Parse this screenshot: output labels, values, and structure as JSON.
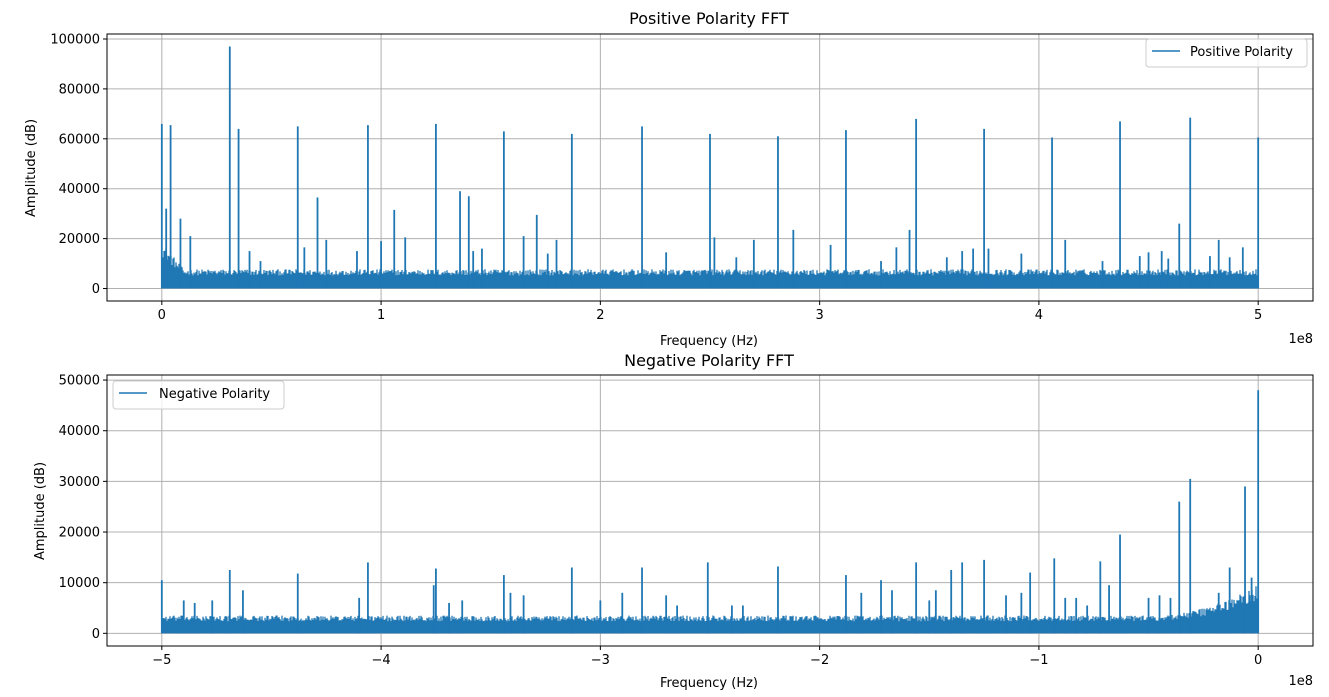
{
  "chart_data": [
    {
      "type": "line",
      "title": "Positive Polarity FFT",
      "xlabel": "Frequency (Hz)",
      "ylabel": "Amplitude (dB)",
      "x_offset_label": "1e8",
      "xlim": [
        -25000000,
        525000000
      ],
      "ylim": [
        -5000,
        102000
      ],
      "x_ticks": [
        0,
        100000000,
        200000000,
        300000000,
        400000000,
        500000000
      ],
      "x_tick_labels": [
        "0",
        "1",
        "2",
        "3",
        "4",
        "5"
      ],
      "y_ticks": [
        0,
        20000,
        40000,
        60000,
        80000,
        100000
      ],
      "y_tick_labels": [
        "0",
        "20000",
        "40000",
        "60000",
        "80000",
        "100000"
      ],
      "grid": true,
      "legend_position": "top-right",
      "color": "#1f77b4",
      "series": [
        {
          "name": "Positive Polarity",
          "x_range": [
            0,
            500000000
          ],
          "noise_floor": 4000,
          "noise_ceiling": 7000,
          "peaks": [
            [
              0,
              66000
            ],
            [
              2000000,
              32000
            ],
            [
              4000000,
              65500
            ],
            [
              8500000,
              28000
            ],
            [
              13000000,
              21000
            ],
            [
              31000000,
              97000
            ],
            [
              35000000,
              64000
            ],
            [
              40000000,
              15000
            ],
            [
              45000000,
              11000
            ],
            [
              62000000,
              65000
            ],
            [
              65000000,
              16500
            ],
            [
              71000000,
              36500
            ],
            [
              75000000,
              19500
            ],
            [
              89000000,
              15000
            ],
            [
              94000000,
              65500
            ],
            [
              100000000,
              19000
            ],
            [
              106000000,
              31500
            ],
            [
              111000000,
              20500
            ],
            [
              125000000,
              66000
            ],
            [
              136000000,
              39000
            ],
            [
              140000000,
              37000
            ],
            [
              142000000,
              15000
            ],
            [
              146000000,
              16000
            ],
            [
              156000000,
              63000
            ],
            [
              165000000,
              21000
            ],
            [
              171000000,
              29500
            ],
            [
              176000000,
              14000
            ],
            [
              180000000,
              19500
            ],
            [
              187000000,
              62000
            ],
            [
              219000000,
              65000
            ],
            [
              230000000,
              14500
            ],
            [
              250000000,
              62000
            ],
            [
              252000000,
              20500
            ],
            [
              262000000,
              12500
            ],
            [
              270000000,
              19500
            ],
            [
              281000000,
              61000
            ],
            [
              288000000,
              23500
            ],
            [
              305000000,
              17500
            ],
            [
              312000000,
              63500
            ],
            [
              328000000,
              11000
            ],
            [
              335000000,
              16500
            ],
            [
              341000000,
              23500
            ],
            [
              344000000,
              68000
            ],
            [
              358000000,
              12500
            ],
            [
              365000000,
              15000
            ],
            [
              370000000,
              16000
            ],
            [
              375000000,
              64000
            ],
            [
              377000000,
              16000
            ],
            [
              392000000,
              14000
            ],
            [
              406000000,
              60500
            ],
            [
              412000000,
              19500
            ],
            [
              429000000,
              11000
            ],
            [
              437000000,
              67000
            ],
            [
              446000000,
              13000
            ],
            [
              450000000,
              14500
            ],
            [
              456000000,
              15000
            ],
            [
              459000000,
              12000
            ],
            [
              464000000,
              26000
            ],
            [
              469000000,
              68500
            ],
            [
              478000000,
              13000
            ],
            [
              482000000,
              19500
            ],
            [
              487000000,
              12500
            ],
            [
              493000000,
              16500
            ],
            [
              500000000,
              60500
            ]
          ]
        }
      ]
    },
    {
      "type": "line",
      "title": "Negative Polarity FFT",
      "xlabel": "Frequency (Hz)",
      "ylabel": "Amplitude (dB)",
      "x_offset_label": "1e8",
      "xlim": [
        -525000000,
        25000000
      ],
      "ylim": [
        -2500,
        51000
      ],
      "x_ticks": [
        -500000000,
        -400000000,
        -300000000,
        -200000000,
        -100000000,
        0
      ],
      "x_tick_labels": [
        "−5",
        "−4",
        "−3",
        "−2",
        "−1",
        "0"
      ],
      "y_ticks": [
        0,
        10000,
        20000,
        30000,
        40000,
        50000
      ],
      "y_tick_labels": [
        "0",
        "10000",
        "20000",
        "30000",
        "40000",
        "50000"
      ],
      "grid": true,
      "legend_position": "top-left",
      "color": "#1f77b4",
      "series": [
        {
          "name": "Negative Polarity",
          "x_range": [
            -500000000,
            0
          ],
          "noise_floor": 2000,
          "noise_ceiling": 3200,
          "peaks": [
            [
              -500000000,
              10500
            ],
            [
              -490000000,
              6500
            ],
            [
              -485000000,
              6000
            ],
            [
              -477000000,
              6500
            ],
            [
              -469000000,
              12500
            ],
            [
              -463000000,
              8500
            ],
            [
              -438000000,
              11800
            ],
            [
              -410000000,
              7000
            ],
            [
              -406000000,
              14000
            ],
            [
              -376000000,
              9500
            ],
            [
              -375000000,
              12800
            ],
            [
              -369000000,
              6000
            ],
            [
              -363000000,
              6500
            ],
            [
              -344000000,
              11500
            ],
            [
              -341000000,
              8000
            ],
            [
              -335000000,
              7500
            ],
            [
              -313000000,
              13000
            ],
            [
              -300000000,
              6500
            ],
            [
              -290000000,
              8000
            ],
            [
              -281000000,
              13000
            ],
            [
              -270000000,
              7500
            ],
            [
              -265000000,
              5500
            ],
            [
              -251000000,
              14000
            ],
            [
              -240000000,
              5500
            ],
            [
              -235000000,
              5500
            ],
            [
              -219000000,
              13200
            ],
            [
              -188000000,
              11500
            ],
            [
              -181000000,
              8000
            ],
            [
              -172000000,
              10500
            ],
            [
              -167000000,
              8500
            ],
            [
              -156000000,
              14000
            ],
            [
              -150000000,
              6500
            ],
            [
              -147000000,
              8500
            ],
            [
              -140000000,
              12500
            ],
            [
              -135000000,
              14000
            ],
            [
              -125000000,
              14500
            ],
            [
              -115000000,
              7500
            ],
            [
              -108000000,
              8000
            ],
            [
              -104000000,
              12000
            ],
            [
              -93000000,
              14800
            ],
            [
              -88000000,
              7000
            ],
            [
              -83000000,
              7000
            ],
            [
              -78000000,
              5500
            ],
            [
              -72000000,
              14200
            ],
            [
              -68000000,
              9500
            ],
            [
              -63000000,
              19500
            ],
            [
              -50000000,
              7000
            ],
            [
              -45000000,
              7500
            ],
            [
              -40000000,
              7000
            ],
            [
              -36000000,
              26000
            ],
            [
              -31000000,
              30500
            ],
            [
              -18000000,
              8000
            ],
            [
              -13000000,
              13000
            ],
            [
              -6000000,
              29000
            ],
            [
              -3000000,
              11000
            ],
            [
              0,
              48000
            ]
          ]
        }
      ]
    }
  ]
}
